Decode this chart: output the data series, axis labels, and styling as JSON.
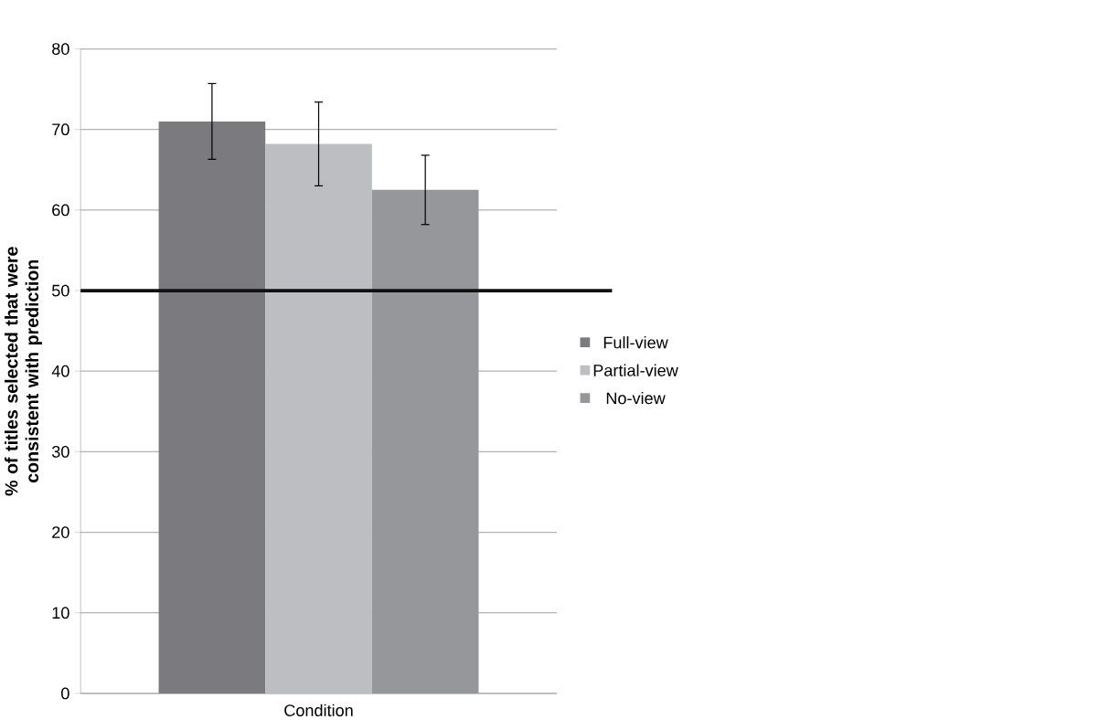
{
  "chart_data": {
    "type": "bar",
    "ylabel": "% of titles selected that were consistent with prediction",
    "categories": [
      "Condition"
    ],
    "series": [
      {
        "name": "Full-view",
        "color": "#7b7b7f",
        "values": [
          71.0
        ],
        "errors": [
          4.7
        ]
      },
      {
        "name": "Partial-view",
        "color": "#bdbec2",
        "values": [
          68.2
        ],
        "errors": [
          5.2
        ]
      },
      {
        "name": "No-view",
        "color": "#96979b",
        "values": [
          62.5
        ],
        "errors": [
          4.3
        ]
      }
    ],
    "ylim": [
      0,
      80
    ],
    "yticks": [
      0,
      10,
      20,
      30,
      40,
      50,
      60,
      70,
      80
    ],
    "grid": "y",
    "legend": "right",
    "ref_lines": [
      {
        "axis": "y",
        "value": 50,
        "color": "#111111"
      }
    ]
  }
}
